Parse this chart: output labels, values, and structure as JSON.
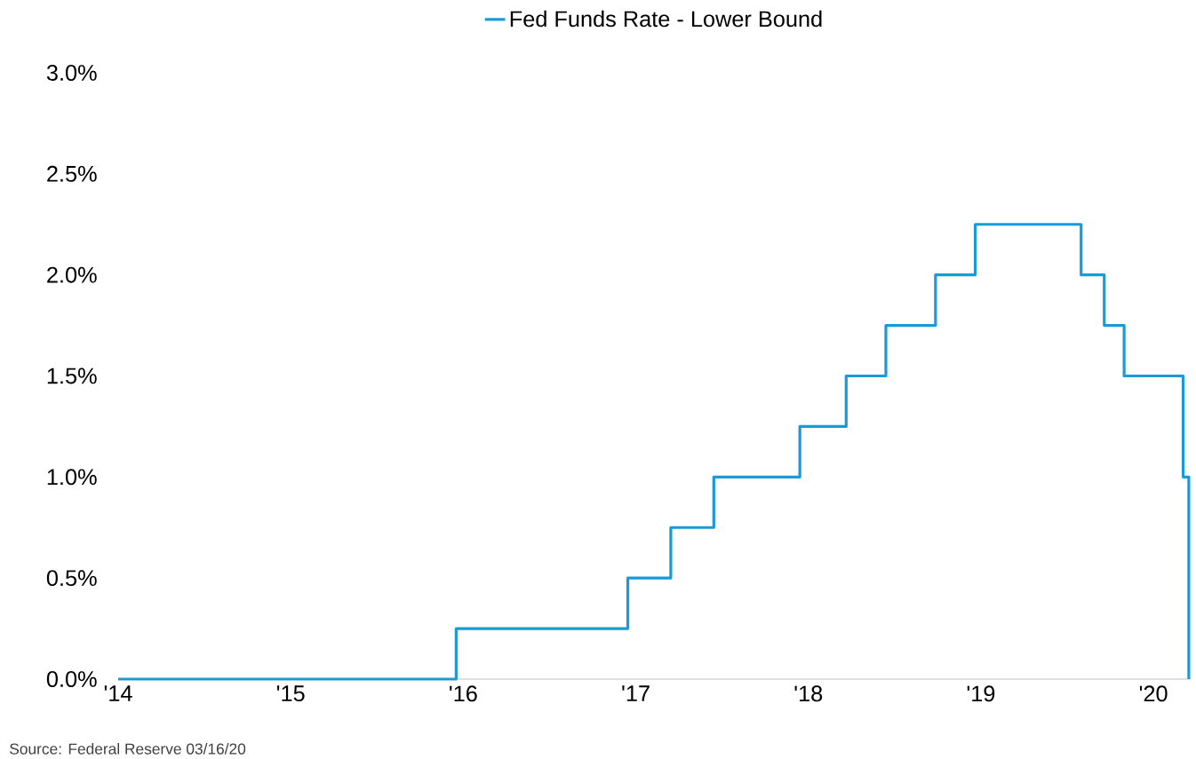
{
  "chart_data": {
    "type": "step",
    "series": [
      {
        "name": "Fed Funds Rate - Lower Bound",
        "color": "#1a9ad6",
        "x": [
          "2014-01-01",
          "2015-12-17",
          "2016-12-15",
          "2017-03-16",
          "2017-06-15",
          "2017-12-14",
          "2018-03-22",
          "2018-06-14",
          "2018-09-27",
          "2018-12-20",
          "2019-08-01",
          "2019-09-19",
          "2019-10-31",
          "2020-03-04",
          "2020-03-16"
        ],
        "values": [
          0,
          0.25,
          0.5,
          0.75,
          1.0,
          1.25,
          1.5,
          1.75,
          2.0,
          2.25,
          2.0,
          1.75,
          1.5,
          1.0,
          0
        ]
      }
    ],
    "xlim": [
      "2014-01-01",
      "2020-03-20"
    ],
    "xticks": [
      {
        "value": "2014-01-01",
        "label": "'14"
      },
      {
        "value": "2015-01-01",
        "label": "'15"
      },
      {
        "value": "2016-01-01",
        "label": "'16"
      },
      {
        "value": "2017-01-01",
        "label": "'17"
      },
      {
        "value": "2018-01-01",
        "label": "'18"
      },
      {
        "value": "2019-01-01",
        "label": "'19"
      },
      {
        "value": "2020-01-01",
        "label": "'20"
      }
    ],
    "ylim": [
      0,
      3
    ],
    "yticks": [
      {
        "value": 0,
        "label": "0.0%"
      },
      {
        "value": 0.5,
        "label": "0.5%"
      },
      {
        "value": 1,
        "label": "1.0%"
      },
      {
        "value": 1.5,
        "label": "1.5%"
      },
      {
        "value": 2,
        "label": "2.0%"
      },
      {
        "value": 2.5,
        "label": "2.5%"
      },
      {
        "value": 3,
        "label": "3.0%"
      }
    ],
    "legend": "top",
    "annotations": [
      "Source: Federal Reserve 03/16/20"
    ]
  }
}
